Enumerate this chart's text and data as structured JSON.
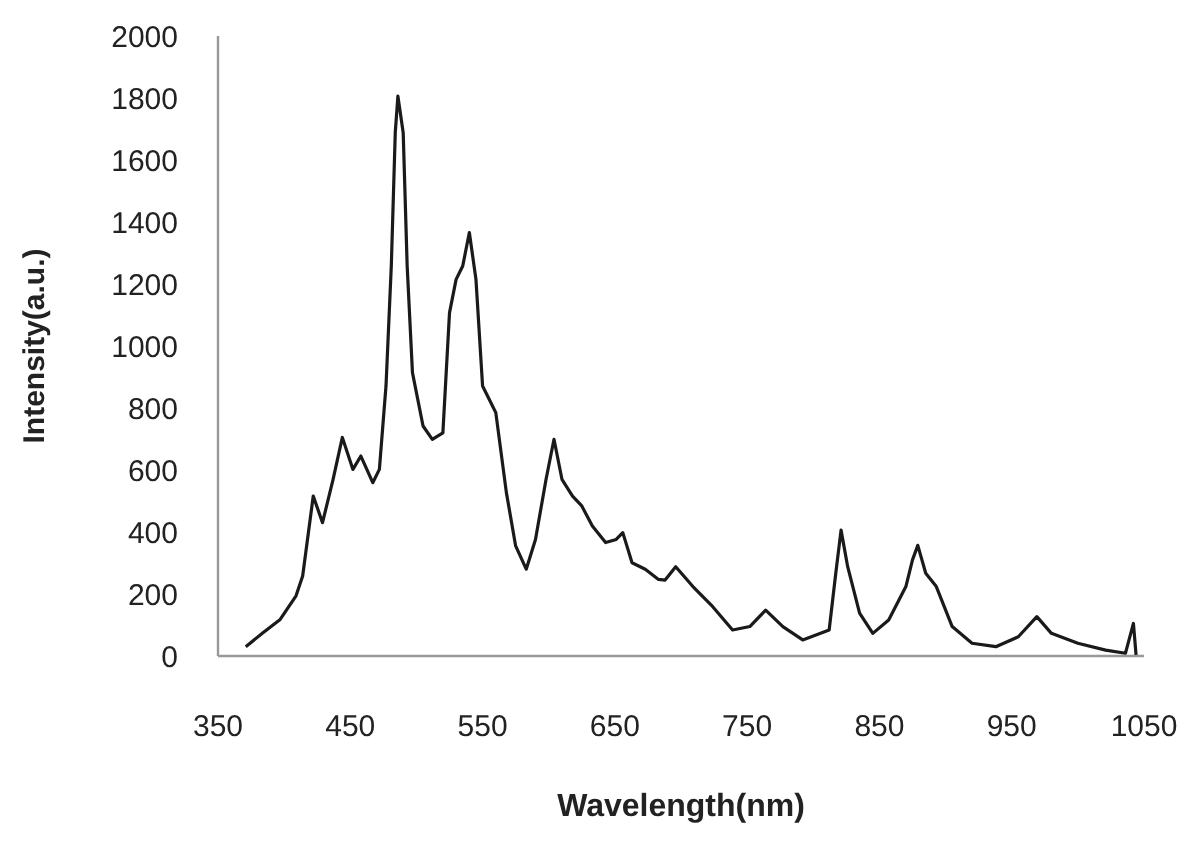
{
  "chart_data": {
    "type": "line",
    "xlabel": "Wavelength(nm)",
    "ylabel": "Intensity(a.u.)",
    "xlim": [
      350,
      1050
    ],
    "ylim": [
      0,
      2000
    ],
    "xticks": [
      350,
      450,
      550,
      650,
      750,
      850,
      950,
      1050
    ],
    "yticks": [
      0,
      200,
      400,
      600,
      800,
      1000,
      1200,
      1400,
      1600,
      1800,
      2000
    ],
    "grid": false,
    "marker": "none",
    "line_style": "solid",
    "series": [
      {
        "color": "#1a1a1a",
        "x": [
          371,
          384,
          397,
          409,
          414,
          422,
          429,
          437,
          444,
          452,
          458,
          467,
          472,
          477,
          481,
          484,
          486,
          490,
          493,
          497,
          505,
          512,
          520,
          525,
          530,
          535,
          540,
          545,
          550,
          555,
          560,
          568,
          575,
          583,
          590,
          598,
          604,
          610,
          618,
          625,
          633,
          643,
          651,
          656,
          663,
          673,
          683,
          688,
          696,
          709,
          724,
          739,
          752,
          764,
          777,
          792,
          812,
          817,
          821,
          826,
          835,
          845,
          857,
          870,
          875,
          879,
          885,
          893,
          905,
          920,
          938,
          955,
          969,
          980,
          1000,
          1021,
          1036,
          1042,
          1044
        ],
        "values": [
          30,
          75,
          118,
          194,
          258,
          516,
          430,
          570,
          705,
          602,
          645,
          559,
          602,
          871,
          1258,
          1688,
          1806,
          1688,
          1258,
          914,
          742,
          699,
          720,
          1107,
          1215,
          1258,
          1366,
          1215,
          871,
          828,
          785,
          527,
          355,
          280,
          376,
          570,
          699,
          570,
          516,
          484,
          419,
          366,
          376,
          398,
          301,
          280,
          247,
          245,
          288,
          224,
          159,
          84,
          95,
          148,
          95,
          52,
          84,
          267,
          406,
          288,
          138,
          73,
          116,
          224,
          310,
          357,
          267,
          224,
          95,
          41,
          30,
          62,
          127,
          73,
          41,
          19,
          9,
          105,
          4
        ]
      }
    ]
  }
}
